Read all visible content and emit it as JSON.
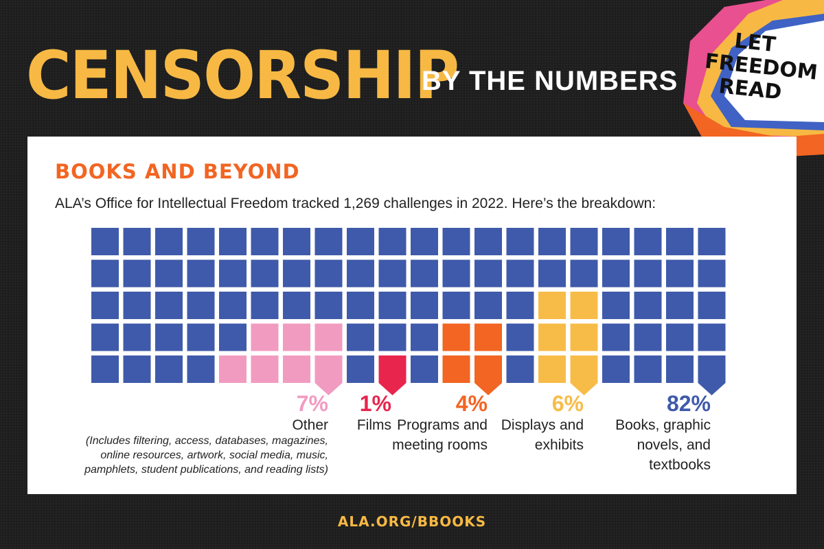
{
  "header": {
    "title_main": "CENSORSHIP",
    "title_sub": "BY THE NUMBERS"
  },
  "logo": {
    "lines": [
      "LET",
      "FREEDOM",
      "READ"
    ]
  },
  "section": {
    "heading": "BOOKS AND BEYOND",
    "intro": "ALA’s Office for Intellectual Freedom tracked 1,269 challenges in 2022. Here’s the breakdown:"
  },
  "colors": {
    "books": "#3f5aaa",
    "other": "#f29bc1",
    "films": "#e8254d",
    "programs": "#f26522",
    "displays": "#f7bc48",
    "title": "#f7b944",
    "heading": "#f26522"
  },
  "chart_data": {
    "type": "waffle",
    "rows": 5,
    "cols": 20,
    "total_units": 100,
    "categories": [
      {
        "key": "other",
        "percent": "7%",
        "value": 7,
        "name": "Other",
        "note": "(Includes filtering, access, databases, magazines, online resources, artwork, social media, music, pamphlets, student publications, and reading lists)",
        "color": "#f29bc1"
      },
      {
        "key": "films",
        "percent": "1%",
        "value": 1,
        "name": "Films",
        "color": "#e8254d"
      },
      {
        "key": "programs",
        "percent": "4%",
        "value": 4,
        "name": "Programs and meeting rooms",
        "color": "#f26522"
      },
      {
        "key": "displays",
        "percent": "6%",
        "value": 6,
        "name": "Displays and exhibits",
        "color": "#f7bc48"
      },
      {
        "key": "books",
        "percent": "82%",
        "value": 82,
        "name": "Books, graphic novels, and textbooks",
        "color": "#3f5aaa"
      }
    ],
    "highlighted_cells": {
      "other": [
        [
          3,
          5
        ],
        [
          3,
          6
        ],
        [
          3,
          7
        ],
        [
          4,
          4
        ],
        [
          4,
          5
        ],
        [
          4,
          6
        ],
        [
          4,
          7
        ]
      ],
      "films": [
        [
          4,
          9
        ]
      ],
      "programs": [
        [
          3,
          11
        ],
        [
          3,
          12
        ],
        [
          4,
          11
        ],
        [
          4,
          12
        ]
      ],
      "displays": [
        [
          2,
          14
        ],
        [
          2,
          15
        ],
        [
          3,
          14
        ],
        [
          3,
          15
        ],
        [
          4,
          14
        ],
        [
          4,
          15
        ]
      ]
    },
    "pointer_columns": {
      "other": 7,
      "films": 9,
      "programs": 12,
      "displays": 15,
      "books": 19
    }
  },
  "footer": {
    "url": "ALA.ORG/BBOOKS"
  }
}
